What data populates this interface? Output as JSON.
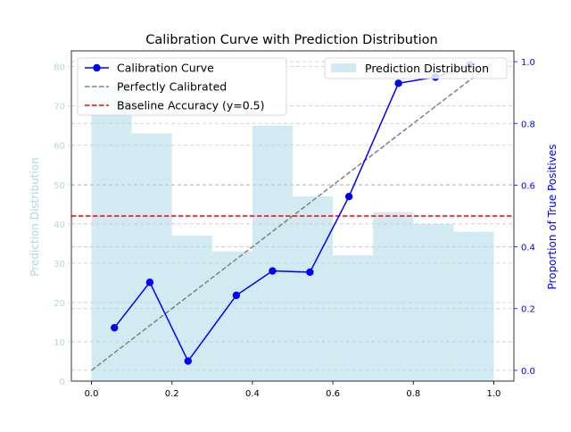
{
  "chart_data": {
    "type": "bar+line",
    "title": "Calibration Curve with Prediction Distribution",
    "xlabel": "",
    "ylabel_left": "Prediction Distribution",
    "ylabel_right": "Proportion of True Positives",
    "xlim": [
      -0.05,
      1.05
    ],
    "ylim_left": [
      0,
      84
    ],
    "ylim_right": [
      -0.035,
      1.035
    ],
    "x_ticks": [
      "0.0",
      "0.2",
      "0.4",
      "0.6",
      "0.8",
      "1.0"
    ],
    "y_left_ticks": [
      "0",
      "10",
      "20",
      "30",
      "40",
      "50",
      "60",
      "70",
      "80"
    ],
    "y_right_ticks": [
      "0.0",
      "0.2",
      "0.4",
      "0.6",
      "0.8",
      "1.0"
    ],
    "grid": "horizontal dashed",
    "histogram": {
      "name": "Prediction Distribution",
      "bin_edges": [
        0.0,
        0.1,
        0.2,
        0.3,
        0.4,
        0.5,
        0.6,
        0.7,
        0.8,
        0.9,
        1.0
      ],
      "counts": [
        75,
        63,
        37,
        33,
        65,
        47,
        32,
        43,
        40,
        38
      ],
      "color": "#add8e6"
    },
    "calibration_curve": {
      "name": "Calibration Curve",
      "x": [
        0.057,
        0.145,
        0.24,
        0.36,
        0.45,
        0.543,
        0.64,
        0.763,
        0.855,
        0.94
      ],
      "y": [
        0.138,
        0.285,
        0.03,
        0.243,
        0.322,
        0.318,
        0.563,
        0.93,
        0.95,
        0.99
      ],
      "color": "#0000ff"
    },
    "perfect_line": {
      "name": "Perfectly Calibrated",
      "x": [
        0,
        1
      ],
      "y": [
        0,
        1
      ],
      "color": "#808080"
    },
    "baseline": {
      "name": "Baseline Accuracy (y=0.5)",
      "y": 0.5,
      "color": "#ff0000"
    },
    "legend_left": {
      "placement": "top-left",
      "entries": [
        "Calibration Curve",
        "Perfectly Calibrated",
        "Baseline Accuracy (y=0.5)"
      ]
    },
    "legend_right": {
      "placement": "top-right",
      "entries": [
        "Prediction Distribution"
      ]
    }
  }
}
